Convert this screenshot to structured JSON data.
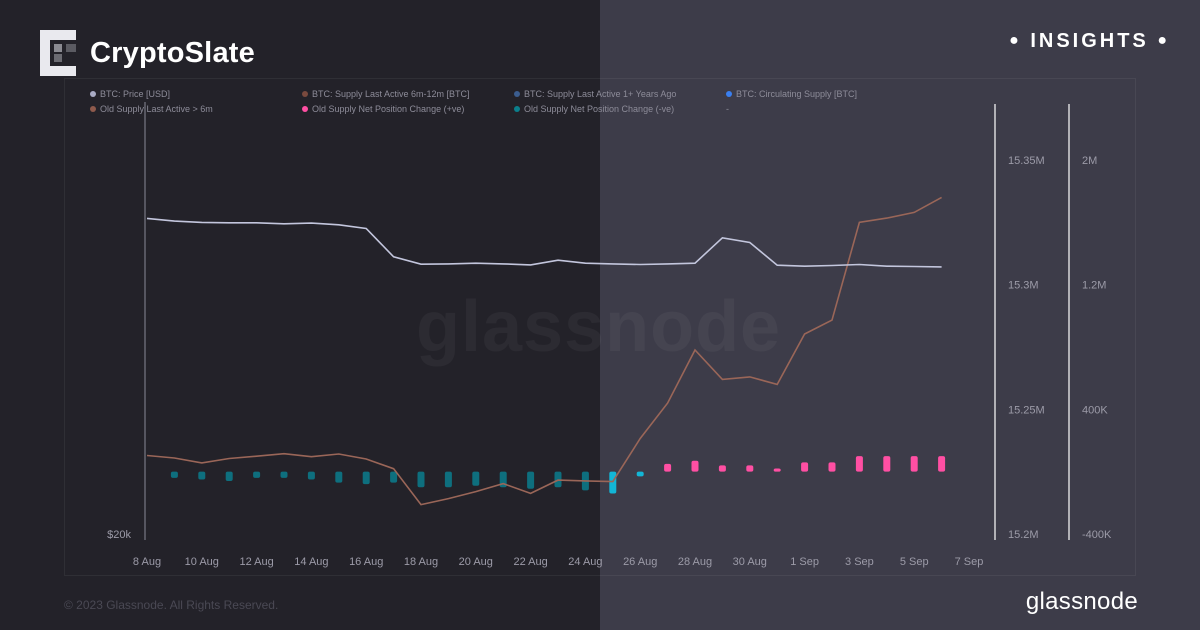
{
  "brand": {
    "name": "CryptoSlate",
    "badge": "INSIGHTS"
  },
  "watermark": "glassnode",
  "footer": {
    "copyright": "© 2023 Glassnode. All Rights Reserved.",
    "logo": "glassnode"
  },
  "chart_data": {
    "type": "line",
    "title": "",
    "legend_position": "top-left",
    "legend": [
      {
        "label": "BTC: Price [USD]",
        "color": "#a9abc4"
      },
      {
        "label": "BTC: Supply Last Active 6m-12m [BTC]",
        "color": "#7a4a3e"
      },
      {
        "label": "BTC: Supply Last Active 1+ Years Ago",
        "color": "#3b5d8f"
      },
      {
        "label": "BTC: Circulating Supply [BTC]",
        "color": "#3a7ff0"
      },
      {
        "label": "Old Supply Last Active > 6m",
        "color": "#8e5a4c"
      },
      {
        "label": "Old Supply Net Position Change (+ve)",
        "color": "#ff4fa3"
      },
      {
        "label": "Old Supply Net Position Change (-ve)",
        "color": "#0b7f8c"
      },
      {
        "label": "-",
        "color": ""
      }
    ],
    "x_labels": [
      "8 Aug",
      "10 Aug",
      "12 Aug",
      "14 Aug",
      "16 Aug",
      "18 Aug",
      "20 Aug",
      "22 Aug",
      "24 Aug",
      "26 Aug",
      "28 Aug",
      "30 Aug",
      "1 Sep",
      "3 Sep",
      "5 Sep",
      "7 Sep"
    ],
    "left_axis": {
      "labels": [
        "$20k"
      ]
    },
    "right_axis_1": {
      "labels": [
        "15.35M",
        "15.3M",
        "15.25M",
        "15.2M"
      ],
      "range": [
        15200000,
        15350000
      ]
    },
    "right_axis_2": {
      "labels": [
        "2M",
        "1.2M",
        "400K",
        "-400K"
      ],
      "range": [
        -400000,
        2000000
      ]
    },
    "dates": [
      "8 Aug",
      "9 Aug",
      "10 Aug",
      "11 Aug",
      "12 Aug",
      "13 Aug",
      "14 Aug",
      "15 Aug",
      "16 Aug",
      "17 Aug",
      "18 Aug",
      "19 Aug",
      "20 Aug",
      "21 Aug",
      "22 Aug",
      "23 Aug",
      "24 Aug",
      "25 Aug",
      "26 Aug",
      "27 Aug",
      "28 Aug",
      "29 Aug",
      "30 Aug",
      "31 Aug",
      "1 Sep",
      "2 Sep",
      "3 Sep",
      "4 Sep",
      "5 Sep",
      "6 Sep"
    ],
    "series": [
      {
        "name": "Old Supply Last Active > 6m",
        "axis": "right_axis_1",
        "color": "#9a6658",
        "values": [
          15231500,
          15230500,
          15228500,
          15230300,
          15231200,
          15232200,
          15231000,
          15232100,
          15230100,
          15226200,
          15211800,
          15214200,
          15217000,
          15220200,
          15216300,
          15221600,
          15221300,
          15221000,
          15238300,
          15252500,
          15273800,
          15262000,
          15263000,
          15260000,
          15280200,
          15285800,
          15325000,
          15326700,
          15329000,
          15335000
        ]
      },
      {
        "name": "BTC: Price [USD]",
        "axis": "left_axis",
        "color": "#c3c6dd",
        "values": [
          29450,
          29370,
          29330,
          29320,
          29320,
          29290,
          29310,
          29260,
          29150,
          28300,
          28080,
          28090,
          28110,
          28090,
          28060,
          28200,
          28110,
          28090,
          28070,
          28090,
          28110,
          28870,
          28730,
          28050,
          28020,
          28040,
          28070,
          28020,
          28010,
          28000
        ]
      },
      {
        "name": "Old Supply Net Position Change",
        "axis": "right_axis_2",
        "values": [
          null,
          -40000,
          -50000,
          -60000,
          -40000,
          -40000,
          -50000,
          -70000,
          -80000,
          -70000,
          -100000,
          -100000,
          -90000,
          -100000,
          -110000,
          -100000,
          -120000,
          -140000,
          -30000,
          50000,
          70000,
          40000,
          40000,
          20000,
          60000,
          60000,
          100000,
          100000,
          100000,
          100000
        ]
      }
    ]
  }
}
